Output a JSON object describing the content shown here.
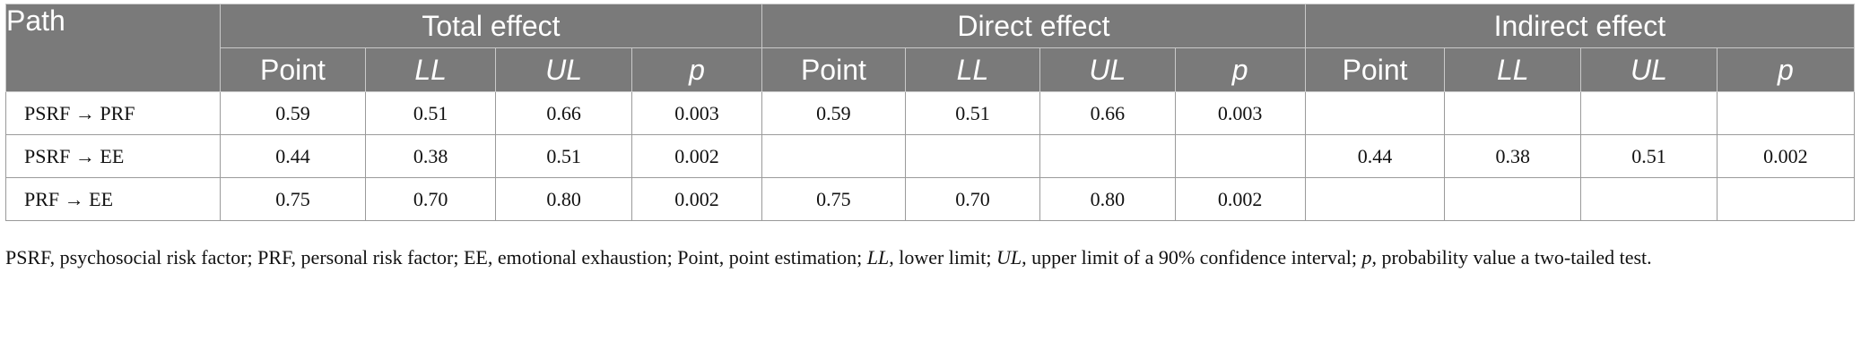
{
  "header": {
    "path": "Path",
    "groups": [
      "Total effect",
      "Direct effect",
      "Indirect effect"
    ],
    "subcolumns": [
      "Point",
      "LL",
      "UL",
      "p"
    ]
  },
  "rows": [
    {
      "path": "PSRF → PRF",
      "total": [
        "0.59",
        "0.51",
        "0.66",
        "0.003"
      ],
      "direct": [
        "0.59",
        "0.51",
        "0.66",
        "0.003"
      ],
      "indirect": [
        "",
        "",
        "",
        ""
      ]
    },
    {
      "path": "PSRF → EE",
      "total": [
        "0.44",
        "0.38",
        "0.51",
        "0.002"
      ],
      "direct": [
        "",
        "",
        "",
        ""
      ],
      "indirect": [
        "0.44",
        "0.38",
        "0.51",
        "0.002"
      ]
    },
    {
      "path": "PRF → EE",
      "total": [
        "0.75",
        "0.70",
        "0.80",
        "0.002"
      ],
      "direct": [
        "0.75",
        "0.70",
        "0.80",
        "0.002"
      ],
      "indirect": [
        "",
        "",
        "",
        ""
      ]
    }
  ],
  "footnote": {
    "part1": "PSRF, psychosocial risk factor; PRF, personal risk factor; EE, emotional exhaustion; Point, point estimation; ",
    "ll": "LL",
    "part2": ", lower limit; ",
    "ul": "UL",
    "part3": ", upper limit of a 90% confidence interval; ",
    "p": "p",
    "part4": ", probability value a two-tailed test."
  }
}
